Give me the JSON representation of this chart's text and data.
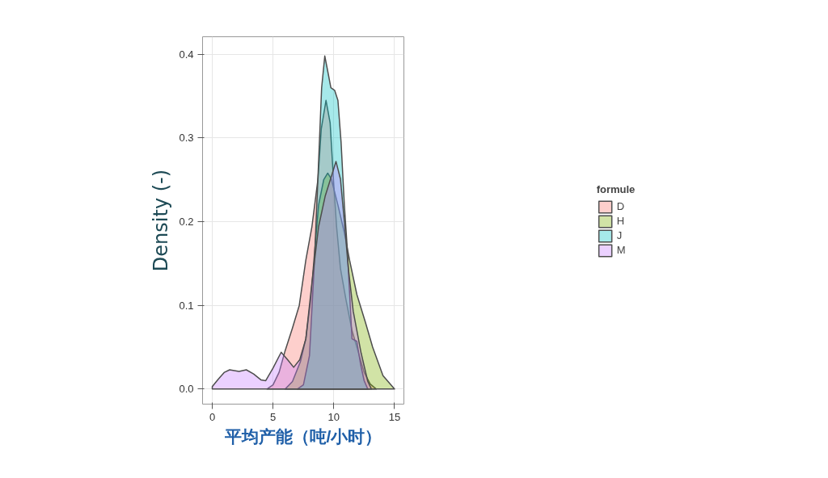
{
  "chart_data": {
    "type": "area",
    "xlabel": "平均产能（吨/小时）",
    "ylabel": "Density (-)",
    "legend_title": "formule",
    "xlim": [
      -0.8,
      15.77
    ],
    "ylim": [
      -0.018,
      0.421
    ],
    "xticks": [
      0,
      5,
      10,
      15
    ],
    "yticks": [
      {
        "value": 0,
        "label": "0.0"
      },
      0.1,
      0.2,
      0.3,
      0.4
    ],
    "grid": true,
    "legend": "right",
    "series": [
      {
        "name": "D",
        "color": "#f8766d",
        "x": [
          4.5,
          5.0,
          5.5,
          6.0,
          6.6,
          7.16,
          7.7,
          8.2,
          8.7,
          8.97,
          9.36,
          9.7,
          10.0,
          10.23,
          10.55,
          11.0,
          11.5,
          11.9,
          12.5,
          13.0,
          13.5
        ],
        "values": [
          0,
          0.005,
          0.02,
          0.046,
          0.073,
          0.1,
          0.154,
          0.194,
          0.251,
          0.311,
          0.345,
          0.318,
          0.244,
          0.194,
          0.144,
          0.107,
          0.07,
          0.05,
          0.02,
          0.006,
          0
        ]
      },
      {
        "name": "H",
        "color": "#7cae00",
        "x": [
          6.0,
          6.6,
          7.26,
          7.7,
          8.1,
          8.4,
          8.75,
          9.17,
          9.5,
          9.8,
          10.34,
          10.87,
          11.3,
          11.9,
          12.6,
          13.2,
          14.05,
          15.0
        ],
        "values": [
          0,
          0.009,
          0.033,
          0.06,
          0.107,
          0.16,
          0.22,
          0.25,
          0.258,
          0.251,
          0.22,
          0.187,
          0.154,
          0.113,
          0.08,
          0.05,
          0.016,
          0
        ]
      },
      {
        "name": "J",
        "color": "#00bfc4",
        "x": [
          7.0,
          7.5,
          8.0,
          8.4,
          8.7,
          9.0,
          9.26,
          9.5,
          9.76,
          10.07,
          10.34,
          10.6,
          10.87,
          11.1,
          11.5,
          11.9,
          12.2,
          12.5,
          12.8
        ],
        "values": [
          0,
          0.005,
          0.04,
          0.15,
          0.254,
          0.36,
          0.398,
          0.38,
          0.36,
          0.357,
          0.345,
          0.295,
          0.22,
          0.17,
          0.06,
          0.057,
          0.03,
          0.01,
          0
        ]
      },
      {
        "name": "M",
        "color": "#c77cff",
        "x": [
          0,
          0.5,
          1.0,
          1.43,
          2.2,
          2.8,
          3.4,
          4.0,
          4.4,
          5.0,
          5.67,
          6.2,
          6.7,
          7.2,
          7.7,
          8.2,
          8.75,
          9.3,
          9.8,
          10.18,
          10.55,
          10.87,
          11.2,
          11.6,
          12.25,
          12.8,
          13.1
        ],
        "values": [
          0.003,
          0.012,
          0.02,
          0.023,
          0.021,
          0.023,
          0.018,
          0.011,
          0.01,
          0.025,
          0.044,
          0.035,
          0.026,
          0.035,
          0.06,
          0.127,
          0.194,
          0.231,
          0.254,
          0.272,
          0.251,
          0.2,
          0.144,
          0.093,
          0.043,
          0.009,
          0
        ]
      }
    ]
  }
}
